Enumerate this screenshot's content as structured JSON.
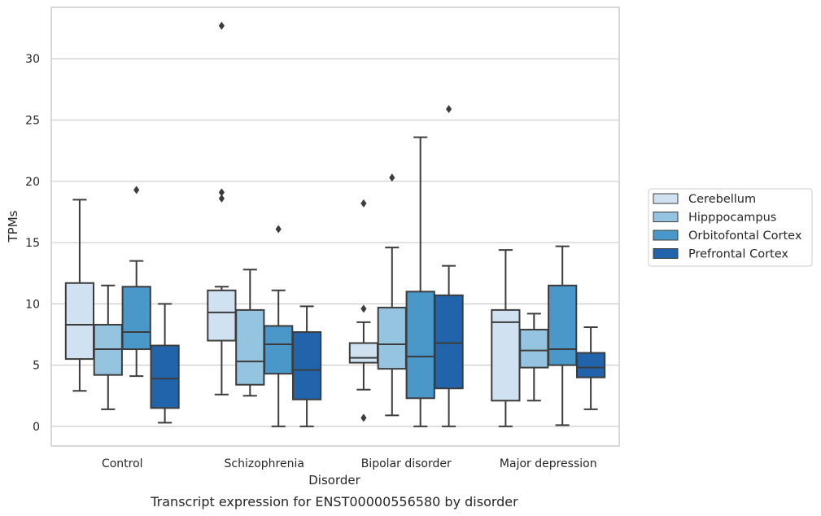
{
  "chart_data": {
    "type": "box",
    "xlabel": "Disorder",
    "ylabel": "TPMs",
    "caption": "Transcript expression for ENST00000556580 by disorder",
    "ylim": [
      -1.6,
      34.2
    ],
    "yticks": [
      0,
      5,
      10,
      15,
      20,
      25,
      30
    ],
    "grid": true,
    "legend_position": "right",
    "categories": [
      "Control",
      "Schizophrenia",
      "Bipolar disorder",
      "Major depression"
    ],
    "series": [
      {
        "name": "Cerebellum",
        "color": "#d0e1f2",
        "boxes": [
          {
            "whisker_low": 2.9,
            "q1": 5.5,
            "median": 8.3,
            "q3": 11.7,
            "whisker_high": 18.5,
            "outliers": []
          },
          {
            "whisker_low": 2.6,
            "q1": 7.0,
            "median": 9.3,
            "q3": 11.1,
            "whisker_high": 11.4,
            "outliers": [
              32.7,
              19.1,
              18.6
            ]
          },
          {
            "whisker_low": 3.0,
            "q1": 5.2,
            "median": 5.6,
            "q3": 6.8,
            "whisker_high": 8.5,
            "outliers": [
              18.2,
              9.6,
              0.7
            ]
          },
          {
            "whisker_low": 0.0,
            "q1": 2.1,
            "median": 8.5,
            "q3": 9.5,
            "whisker_high": 14.4,
            "outliers": []
          }
        ]
      },
      {
        "name": "Hipppocampus",
        "color": "#94c4df",
        "boxes": [
          {
            "whisker_low": 1.4,
            "q1": 4.2,
            "median": 6.3,
            "q3": 8.3,
            "whisker_high": 11.5,
            "outliers": []
          },
          {
            "whisker_low": 2.5,
            "q1": 3.4,
            "median": 5.3,
            "q3": 9.5,
            "whisker_high": 12.8,
            "outliers": []
          },
          {
            "whisker_low": 0.9,
            "q1": 4.7,
            "median": 6.7,
            "q3": 9.7,
            "whisker_high": 14.6,
            "outliers": [
              20.3
            ]
          },
          {
            "whisker_low": 2.1,
            "q1": 4.8,
            "median": 6.2,
            "q3": 7.9,
            "whisker_high": 9.2,
            "outliers": []
          }
        ]
      },
      {
        "name": "Orbitofontal Cortex",
        "color": "#4a98c9",
        "boxes": [
          {
            "whisker_low": 4.1,
            "q1": 6.3,
            "median": 7.7,
            "q3": 11.4,
            "whisker_high": 13.5,
            "outliers": [
              19.3
            ]
          },
          {
            "whisker_low": 0.0,
            "q1": 4.3,
            "median": 6.7,
            "q3": 8.2,
            "whisker_high": 11.1,
            "outliers": [
              16.1
            ]
          },
          {
            "whisker_low": 0.0,
            "q1": 2.3,
            "median": 5.7,
            "q3": 11.0,
            "whisker_high": 23.6,
            "outliers": []
          },
          {
            "whisker_low": 0.1,
            "q1": 5.0,
            "median": 6.3,
            "q3": 11.5,
            "whisker_high": 14.7,
            "outliers": []
          }
        ]
      },
      {
        "name": "Prefrontal Cortex",
        "color": "#2164ab",
        "boxes": [
          {
            "whisker_low": 0.3,
            "q1": 1.5,
            "median": 3.9,
            "q3": 6.6,
            "whisker_high": 10.0,
            "outliers": []
          },
          {
            "whisker_low": 0.0,
            "q1": 2.2,
            "median": 4.6,
            "q3": 7.7,
            "whisker_high": 9.8,
            "outliers": []
          },
          {
            "whisker_low": 0.0,
            "q1": 3.1,
            "median": 6.8,
            "q3": 10.7,
            "whisker_high": 13.1,
            "outliers": [
              25.9
            ]
          },
          {
            "whisker_low": 1.4,
            "q1": 4.0,
            "median": 4.8,
            "q3": 6.0,
            "whisker_high": 8.1,
            "outliers": []
          }
        ]
      }
    ]
  }
}
